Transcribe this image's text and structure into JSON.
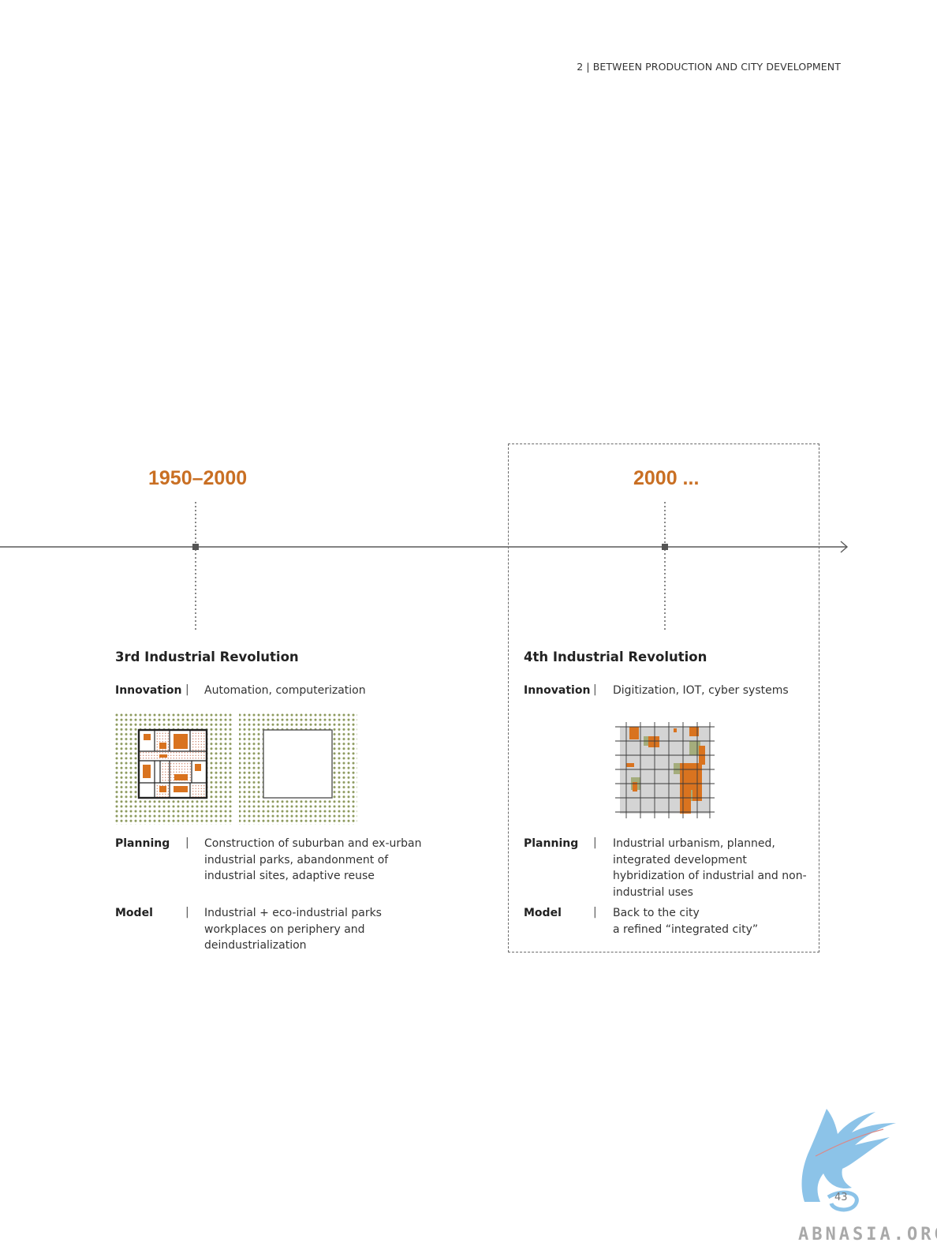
{
  "header": {
    "section": "2 | BETWEEN PRODUCTION AND CITY DEVELOPMENT"
  },
  "timeline": {
    "eras": [
      {
        "year": "1950–2000",
        "title": "3rd Industrial Revolution",
        "innovation_label": "Innovation",
        "innovation": "Automation, computerization",
        "planning_label": "Planning",
        "planning": [
          "Construction of suburban and ex-urban",
          "industrial parks, abandonment of",
          "industrial sites, adaptive reuse"
        ],
        "model_label": "Model",
        "model": [
          "Industrial + eco-industrial parks",
          "workplaces on periphery and",
          "deindustrialization"
        ]
      },
      {
        "year": "2000 ...",
        "title": "4th Industrial Revolution",
        "innovation_label": "Innovation",
        "innovation": "Digitization, IOT, cyber systems",
        "planning_label": "Planning",
        "planning": [
          "Industrial urbanism, planned,",
          "integrated development",
          "hybridization of industrial and non-",
          "industrial uses"
        ],
        "model_label": "Model",
        "model": [
          "Back to the city",
          "a refined “integrated city”"
        ]
      }
    ]
  },
  "colors": {
    "accent": "#c96f23",
    "orange_block": "#d9731f",
    "green_dot": "#8d9a5e",
    "grey_fill": "#d4d4d4",
    "green_block": "#a4ad7c"
  },
  "footer": {
    "page_number": "43",
    "watermark": "ABNASIA.ORG"
  }
}
